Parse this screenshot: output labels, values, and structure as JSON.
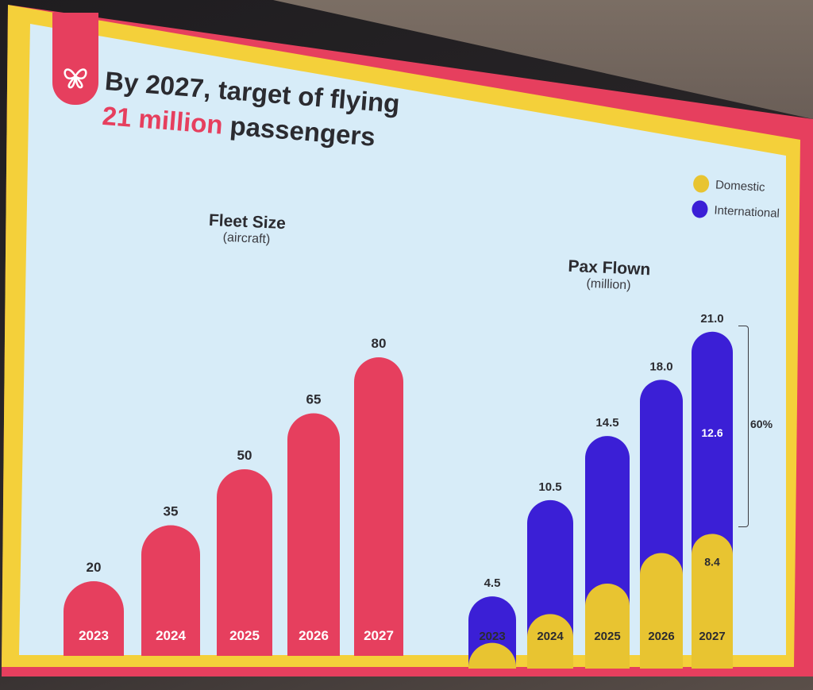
{
  "slide": {
    "title_line1": "By 2027, target of flying",
    "title_highlight": "21 million",
    "title_rest": " passengers"
  },
  "colors": {
    "brand_red": "#e63f5e",
    "domestic": "#e8c431",
    "international": "#3b1fd6",
    "text_dark": "#2b2b30"
  },
  "legend": {
    "items": [
      {
        "label": "Domestic",
        "color": "#e8c431"
      },
      {
        "label": "International",
        "color": "#3b1fd6"
      }
    ]
  },
  "chart_data": [
    {
      "type": "bar",
      "title": "Fleet Size",
      "subtitle": "(aircraft)",
      "categories": [
        "2023",
        "2024",
        "2025",
        "2026",
        "2027"
      ],
      "values": [
        20,
        35,
        50,
        65,
        80
      ],
      "value_labels": [
        "20",
        "35",
        "50",
        "65",
        "80"
      ],
      "color": "#e63f5e"
    },
    {
      "type": "bar",
      "stacked": true,
      "title": "Pax Flown",
      "subtitle": "(million)",
      "categories": [
        "2023",
        "2024",
        "2025",
        "2026",
        "2027"
      ],
      "totals": [
        4.5,
        10.5,
        14.5,
        18.0,
        21.0
      ],
      "total_labels": [
        "4.5",
        "10.5",
        "14.5",
        "18.0",
        "21.0"
      ],
      "series": [
        {
          "name": "Domestic",
          "values": [
            1.6,
            3.4,
            5.3,
            7.2,
            8.4
          ]
        },
        {
          "name": "International",
          "values": [
            2.9,
            7.1,
            9.2,
            10.8,
            12.6
          ]
        }
      ],
      "segment_labels": {
        "domestic_2027": "8.4",
        "international_2027": "12.6"
      },
      "annotation": "60%"
    }
  ]
}
